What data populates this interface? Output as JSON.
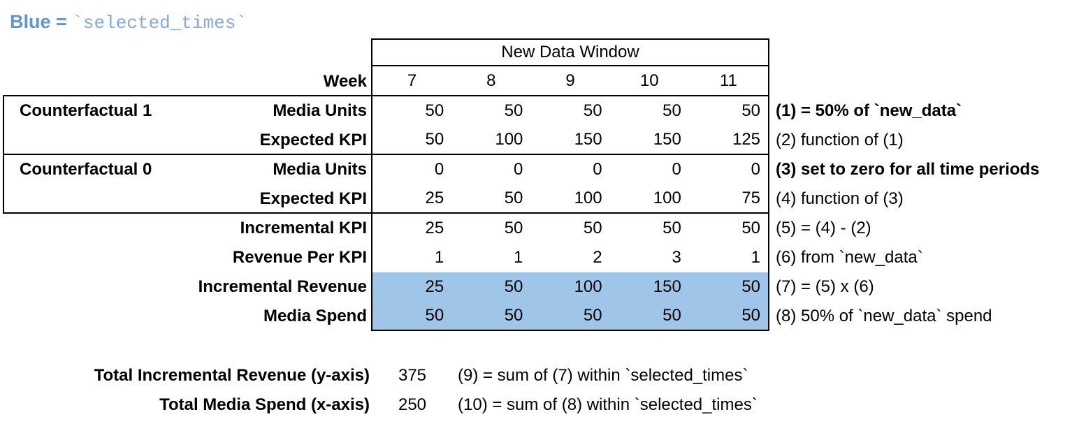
{
  "title": {
    "prefix": "Blue = ",
    "code": "`selected_times`"
  },
  "colors": {
    "highlight_blue": "#9fc5e8",
    "title_blue": "#5d96d5",
    "title_code_blue": "#84abdb",
    "border": "#000000"
  },
  "table": {
    "window_header": "New Data Window",
    "week_label": "Week",
    "weeks": [
      "7",
      "8",
      "9",
      "10",
      "11"
    ],
    "rows": [
      {
        "group": "Counterfactual 1",
        "label": "Media Units",
        "values": [
          50,
          50,
          50,
          50,
          50
        ],
        "note": "(1) = 50% of `new_data`"
      },
      {
        "group": "",
        "label": "Expected KPI",
        "values": [
          50,
          100,
          150,
          150,
          125
        ],
        "note": "(2) function of (1)"
      },
      {
        "group": "Counterfactual 0",
        "label": "Media Units",
        "values": [
          0,
          0,
          0,
          0,
          0
        ],
        "note": "(3) set to zero for all time periods"
      },
      {
        "group": "",
        "label": "Expected KPI",
        "values": [
          25,
          50,
          100,
          100,
          75
        ],
        "note": "(4) function of (3)"
      },
      {
        "group": "",
        "label": "Incremental KPI",
        "values": [
          25,
          50,
          50,
          50,
          50
        ],
        "note": "(5) = (4) - (2)"
      },
      {
        "group": "",
        "label": "Revenue Per KPI",
        "values": [
          1,
          1,
          2,
          3,
          1
        ],
        "note": "(6) from `new_data`"
      },
      {
        "group": "",
        "label": "Incremental Revenue",
        "values": [
          25,
          50,
          100,
          150,
          50
        ],
        "note": "(7) = (5) x (6)"
      },
      {
        "group": "",
        "label": "Media Spend",
        "values": [
          50,
          50,
          50,
          50,
          50
        ],
        "note": "(8) 50% of `new_data` spend"
      }
    ]
  },
  "totals": [
    {
      "label": "Total Incremental Revenue (y-axis)",
      "value": "375",
      "note": "(9) = sum of (7) within `selected_times`"
    },
    {
      "label": "Total Media Spend (x-axis)",
      "value": "250",
      "note": "(10) = sum of (8) within `selected_times`"
    }
  ]
}
